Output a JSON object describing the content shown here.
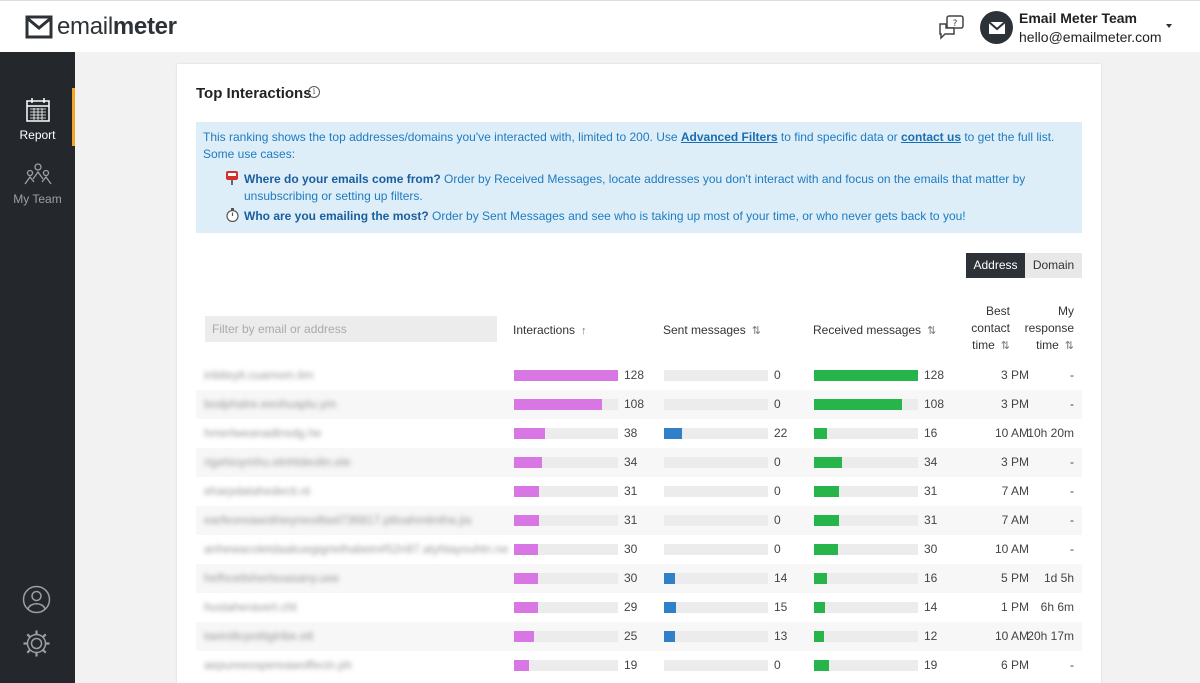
{
  "brand": {
    "name_light": "email",
    "name_bold": "meter"
  },
  "user": {
    "name": "Email Meter Team",
    "email": "hello@emailmeter.com"
  },
  "sidebar": {
    "items": [
      {
        "label": "Report"
      },
      {
        "label": "My Team"
      }
    ]
  },
  "card": {
    "title": "Top Interactions",
    "info": {
      "intro": "This ranking shows the top addresses/domains you've interacted with, limited to 200. Use ",
      "advanced_filters": "Advanced Filters",
      "mid": " to find specific data or ",
      "contact_us": "contact us",
      "end": " to get the full list.",
      "use_cases_label": "Some use cases:",
      "use_case_1_q": "Where do your emails come from?",
      "use_case_1_text": " Order by Received Messages, locate addresses you don't interact with and focus on the emails that matter by unsubscribing or setting up filters.",
      "use_case_2_q": "Who are you emailing the most?",
      "use_case_2_text": " Order by Sent Messages and see who is taking up most of your time, or who never gets back to you!"
    },
    "toggle": {
      "address": "Address",
      "domain": "Domain"
    },
    "filter_placeholder": "Filter by email or address",
    "columns": {
      "interactions": "Interactions",
      "sent": "Sent messages",
      "received": "Received messages",
      "best_l1": "Best",
      "best_l2": "contact",
      "best_l3": "time",
      "resp_l1": "My",
      "resp_l2": "response",
      "resp_l3": "time"
    }
  },
  "colors": {
    "interactions": "#d876e3",
    "sent": "#2f80c9",
    "received": "#27b44b",
    "accent": "#f5a623"
  },
  "max_value": 128,
  "rows": [
    {
      "address": "inbiteyit.cuamom.tim",
      "interactions": 128,
      "sent": 0,
      "received": 128,
      "best_time": "3 PM",
      "response_time": "-"
    },
    {
      "address": "bodphalre.eeohuaplu.ym",
      "interactions": 108,
      "sent": 0,
      "received": 108,
      "best_time": "3 PM",
      "response_time": "-"
    },
    {
      "address": "hmerlweanadlnsdg.he",
      "interactions": 38,
      "sent": 22,
      "received": 16,
      "best_time": "10 AM",
      "response_time": "10h 20m"
    },
    {
      "address": "rigehioymhu.elnhtdeoltn.ele",
      "interactions": 34,
      "sent": 0,
      "received": 34,
      "best_time": "3 PM",
      "response_time": "-"
    },
    {
      "address": "eharpdatahedecti.nt",
      "interactions": 31,
      "sent": 0,
      "received": 31,
      "best_time": "7 AM",
      "response_time": "-"
    },
    {
      "address": "earfeoreawothieyneoiltwd736817.pttoahmtintha.jia",
      "interactions": 31,
      "sent": 0,
      "received": 31,
      "best_time": "7 AM",
      "response_time": "-"
    },
    {
      "address": "anhewacoletdaakuegigriethabein#52n97.atyhtayouhtn.ne",
      "interactions": 30,
      "sent": 0,
      "received": 30,
      "best_time": "10 AM",
      "response_time": "-"
    },
    {
      "address": "hefhcetlsherlsoasany.uee",
      "interactions": 30,
      "sent": 14,
      "received": 16,
      "best_time": "5 PM",
      "response_time": "1d 5h"
    },
    {
      "address": "hustaheravert.cht",
      "interactions": 29,
      "sent": 15,
      "received": 14,
      "best_time": "1 PM",
      "response_time": "6h 6m"
    },
    {
      "address": "taeiniltcpottiglribe.ett",
      "interactions": 25,
      "sent": 13,
      "received": 12,
      "best_time": "10 AM",
      "response_time": "20h 17m"
    },
    {
      "address": "aepureeospereawoffecin.ph",
      "interactions": 19,
      "sent": 0,
      "received": 19,
      "best_time": "6 PM",
      "response_time": "-"
    }
  ]
}
